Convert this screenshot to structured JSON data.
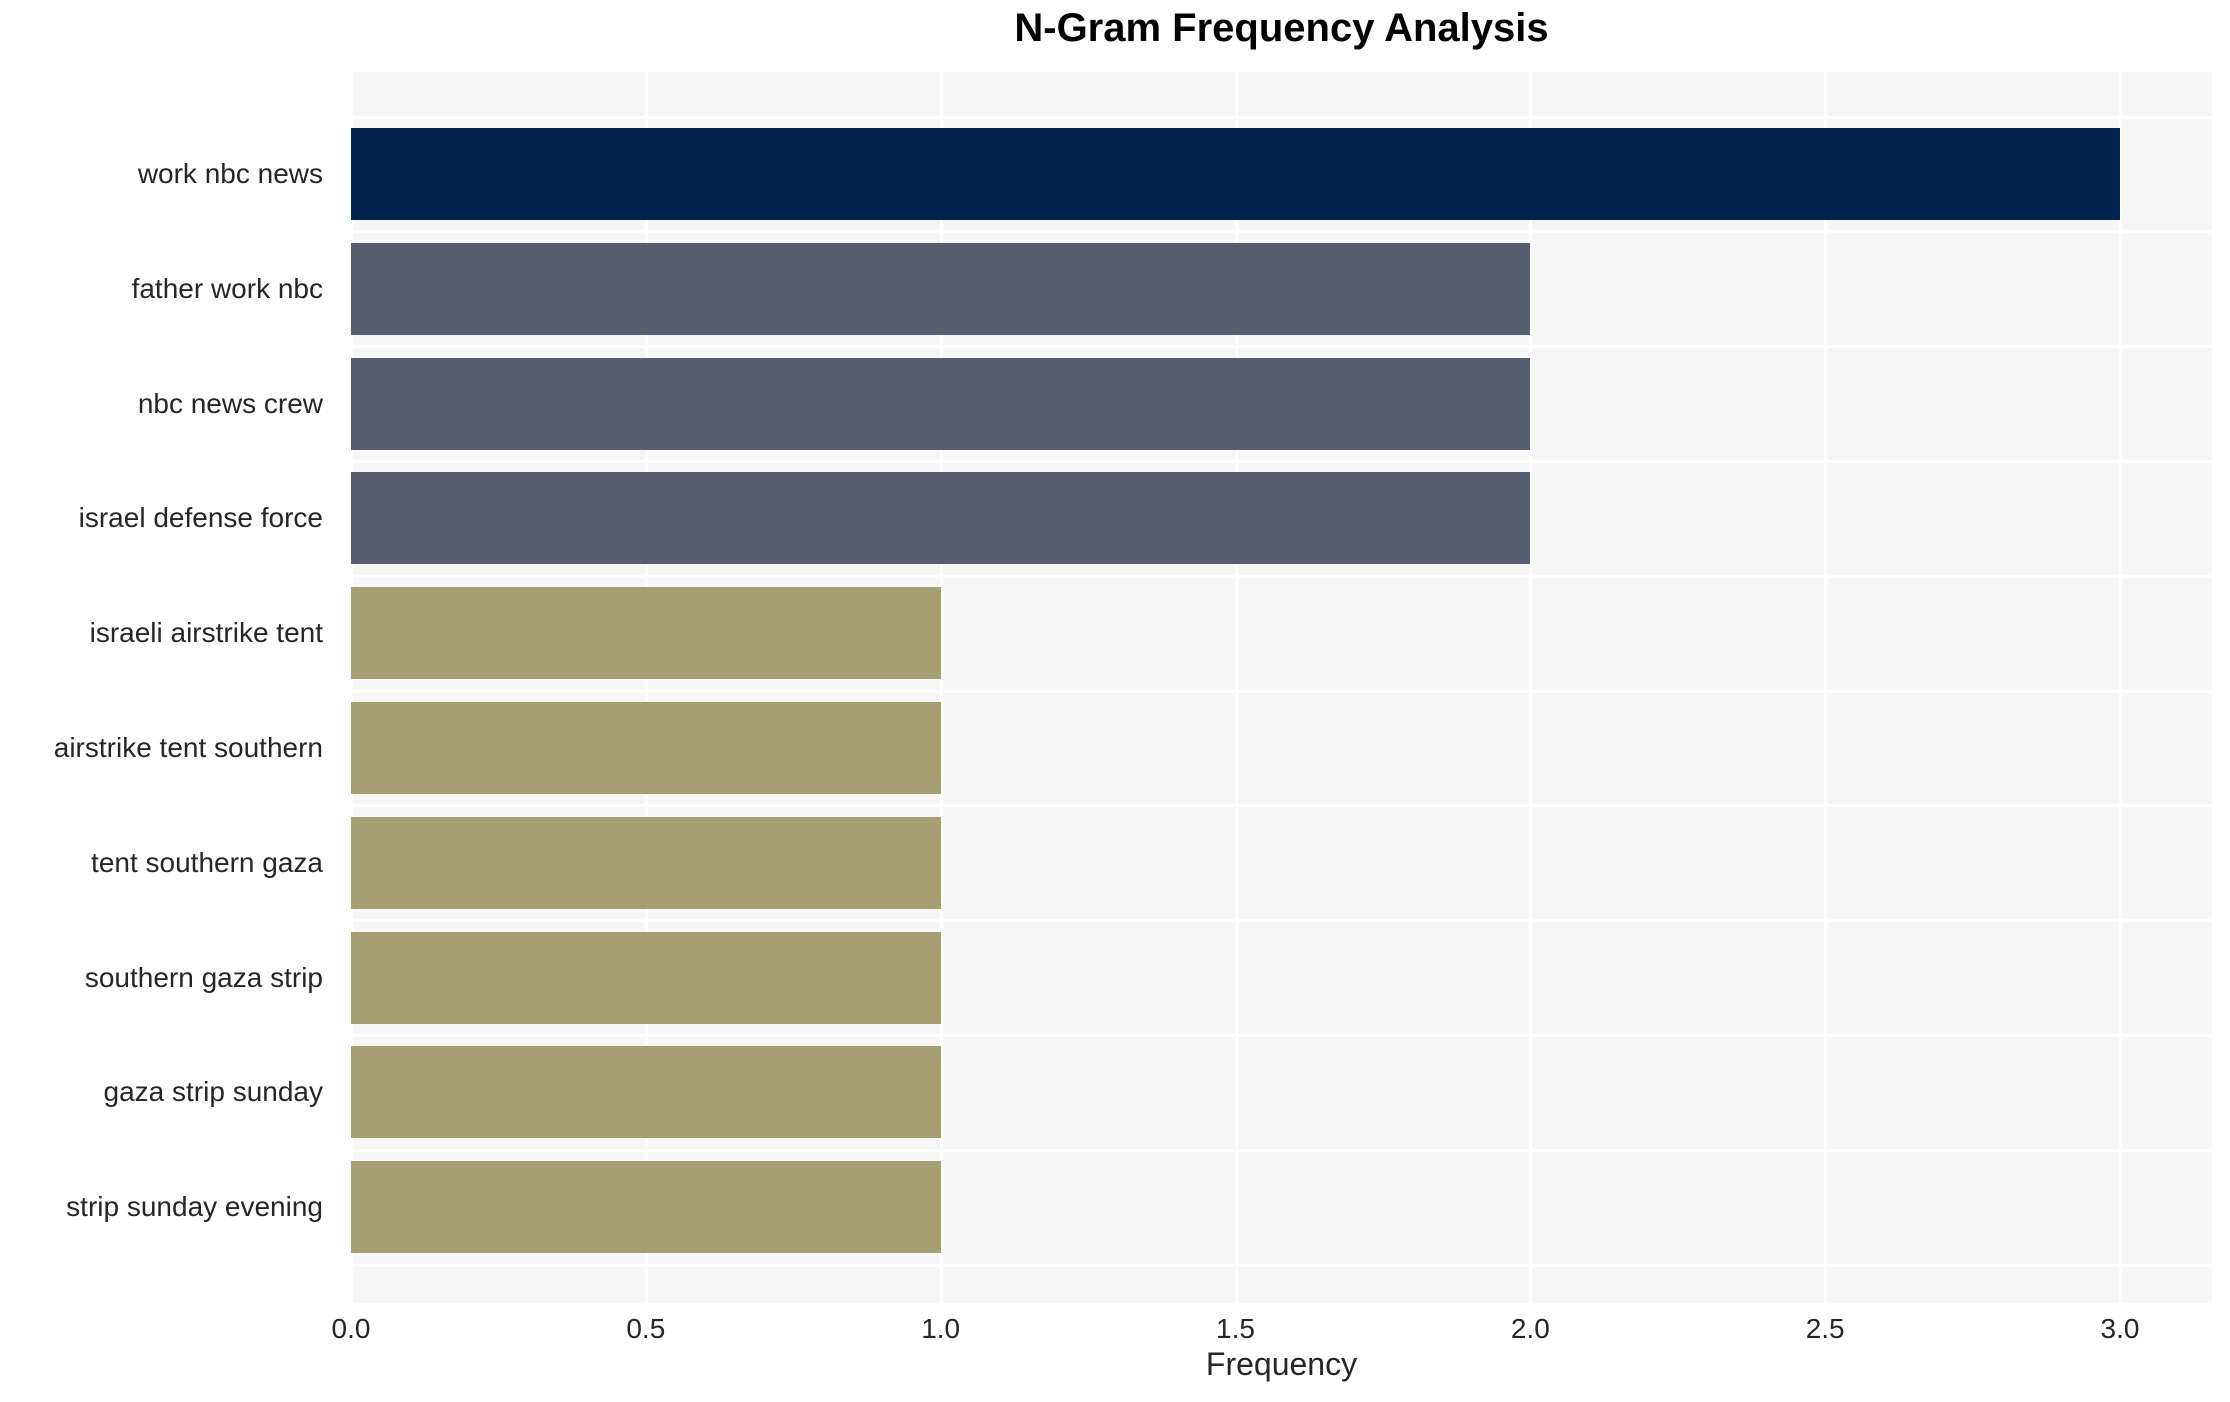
{
  "chart_data": {
    "type": "bar",
    "orientation": "horizontal",
    "title": "N-Gram Frequency Analysis",
    "xlabel": "Frequency",
    "ylabel": "",
    "categories": [
      "work nbc news",
      "father work nbc",
      "nbc news crew",
      "israel defense force",
      "israeli airstrike tent",
      "airstrike tent southern",
      "tent southern gaza",
      "southern gaza strip",
      "gaza strip sunday",
      "strip sunday evening"
    ],
    "values": [
      3,
      2,
      2,
      2,
      1,
      1,
      1,
      1,
      1,
      1
    ],
    "bar_colors": [
      "#03234f",
      "#565d6d",
      "#565d6d",
      "#565d6d",
      "#a59e72",
      "#a59e72",
      "#a59e72",
      "#a59e72",
      "#a59e72",
      "#a59e72"
    ],
    "xticks": [
      0.0,
      0.5,
      1.0,
      1.5,
      2.0,
      2.5,
      3.0
    ],
    "xtick_labels": [
      "0.0",
      "0.5",
      "1.0",
      "1.5",
      "2.0",
      "2.5",
      "3.0"
    ],
    "xlim": [
      0,
      3.156
    ],
    "grid": true,
    "legend": false,
    "colors": {
      "plot_background": "#f7f7f8",
      "gridline": "#ffffff",
      "page_background": "#ffffff",
      "text": "#262626",
      "title_text": "#000000"
    }
  }
}
